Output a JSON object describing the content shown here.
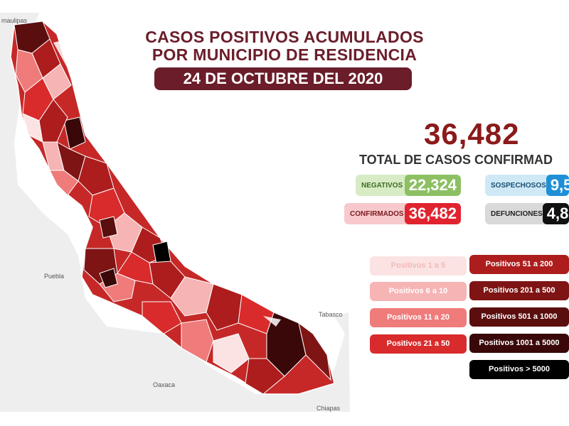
{
  "header": {
    "title_line1": "CASOS POSITIVOS ACUMULADOS",
    "title_line2": "POR MUNICIPIO DE RESIDENCIA",
    "date": "24 DE OCTUBRE DEL 2020"
  },
  "total": {
    "value": "36,482",
    "label": "TOTAL DE CASOS CONFIRMAD"
  },
  "stats": [
    {
      "label": "NEGATIVOS",
      "value": "22,324",
      "bg": "#d7ecc5",
      "accent": "#8cc063",
      "label_color": "#3f6b1f"
    },
    {
      "label": "SOSPECHOSOS",
      "value": "9,5",
      "bg": "#cfe8f6",
      "accent": "#1f8fd6",
      "label_color": "#1a4f73"
    },
    {
      "label": "CONFIRMADOS",
      "value": "36,482",
      "bg": "#f7c9cc",
      "accent": "#e0242f",
      "label_color": "#7a1a1f"
    },
    {
      "label": "DEFUNCIONES",
      "value": "4,8",
      "bg": "#d9d9d9",
      "accent": "#111111",
      "label_color": "#222222"
    }
  ],
  "legend": [
    {
      "label": "Positivos 1 a 5",
      "color": "#fbe3e3"
    },
    {
      "label": "Positivos 6 a 10",
      "color": "#f6b4b4"
    },
    {
      "label": "Positivos 11 a 20",
      "color": "#ef7b7b"
    },
    {
      "label": "Positivos 21 a 50",
      "color": "#d92b2b"
    },
    {
      "label": "Positivos 51 a 200",
      "color": "#ad1d1d"
    },
    {
      "label": "Positivos 201 a 500",
      "color": "#7f1414"
    },
    {
      "label": "Positivos 501 a 1000",
      "color": "#5a0e0e"
    },
    {
      "label": "Positivos 1001 a 5000",
      "color": "#3a0808"
    },
    {
      "label": "Positivos > 5000",
      "color": "#000000"
    }
  ],
  "map_labels": {
    "tamaulipas": "maulipas",
    "puebla": "Puebla",
    "oaxaca": "Oaxaca",
    "tabasco": "Tabasco",
    "chiapas": "Chiapas"
  }
}
